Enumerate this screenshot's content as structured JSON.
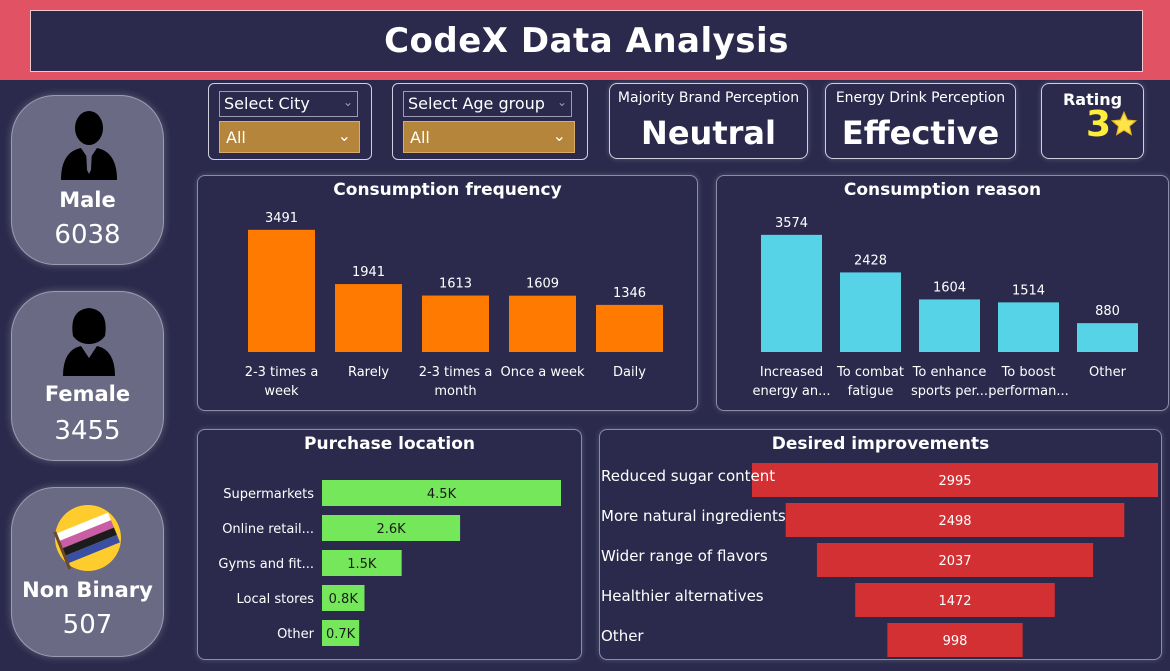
{
  "header": {
    "title": "CodeX Data Analysis"
  },
  "genders": [
    {
      "label": "Male",
      "value": "6038",
      "icon": "male-person-icon"
    },
    {
      "label": "Female",
      "value": "3455",
      "icon": "female-person-icon"
    },
    {
      "label": "Non Binary",
      "value": "507",
      "icon": "nonbinary-flag-icon"
    }
  ],
  "filters": {
    "city": {
      "label": "Select City",
      "value": "All"
    },
    "age": {
      "label": "Select Age group",
      "value": "All"
    }
  },
  "kpis": {
    "brand": {
      "label": "Majority Brand Perception",
      "value": "Neutral"
    },
    "drink": {
      "label": "Energy Drink Perception",
      "value": "Effective"
    },
    "rating": {
      "label": "Rating",
      "value": "3",
      "icon": "star-icon"
    }
  },
  "colors": {
    "background": "#2b2a4c",
    "header": "#e05264",
    "frequency_bars": "#ff7a00",
    "reason_bars": "#56d3e6",
    "location_bars": "#74e85a",
    "improvement_bars": "#d33034",
    "filter_select": "#b5853b",
    "rating_value": "#ffef3a"
  },
  "chart_data": [
    {
      "id": "frequency",
      "type": "bar",
      "title": "Consumption frequency",
      "categories": [
        [
          "2-3 times a",
          "week"
        ],
        [
          "Rarely"
        ],
        [
          "2-3 times a",
          "month"
        ],
        [
          "Once a week"
        ],
        [
          "Daily"
        ]
      ],
      "values": [
        3491,
        1941,
        1613,
        1609,
        1346
      ],
      "labels": [
        "3491",
        "1941",
        "1613",
        "1609",
        "1346"
      ],
      "ylim": [
        0,
        3600
      ]
    },
    {
      "id": "reason",
      "type": "bar",
      "title": "Consumption reason",
      "categories": [
        [
          "Increased",
          "energy an..."
        ],
        [
          "To combat",
          "fatigue"
        ],
        [
          "To enhance",
          "sports per..."
        ],
        [
          "To boost",
          "performan..."
        ],
        [
          "Other"
        ]
      ],
      "values": [
        3574,
        2428,
        1604,
        1514,
        880
      ],
      "labels": [
        "3574",
        "2428",
        "1604",
        "1514",
        "880"
      ],
      "ylim": [
        0,
        3600
      ]
    },
    {
      "id": "location",
      "type": "bar",
      "orientation": "horizontal",
      "title": "Purchase location",
      "categories": [
        "Supermarkets",
        "Online retail...",
        "Gyms and fit...",
        "Local stores",
        "Other"
      ],
      "values": [
        4500,
        2600,
        1500,
        800,
        700
      ],
      "labels": [
        "4.5K",
        "2.6K",
        "1.5K",
        "0.8K",
        "0.7K"
      ],
      "xlim": [
        0,
        4500
      ]
    },
    {
      "id": "improvements",
      "type": "bar",
      "orientation": "funnel",
      "title": "Desired improvements",
      "categories": [
        "Reduced sugar content",
        "More natural ingredients",
        "Wider range of flavors",
        "Healthier alternatives",
        "Other"
      ],
      "values": [
        2995,
        2498,
        2037,
        1472,
        998
      ],
      "labels": [
        "2995",
        "2498",
        "2037",
        "1472",
        "998"
      ],
      "xlim": [
        0,
        2995
      ]
    }
  ]
}
